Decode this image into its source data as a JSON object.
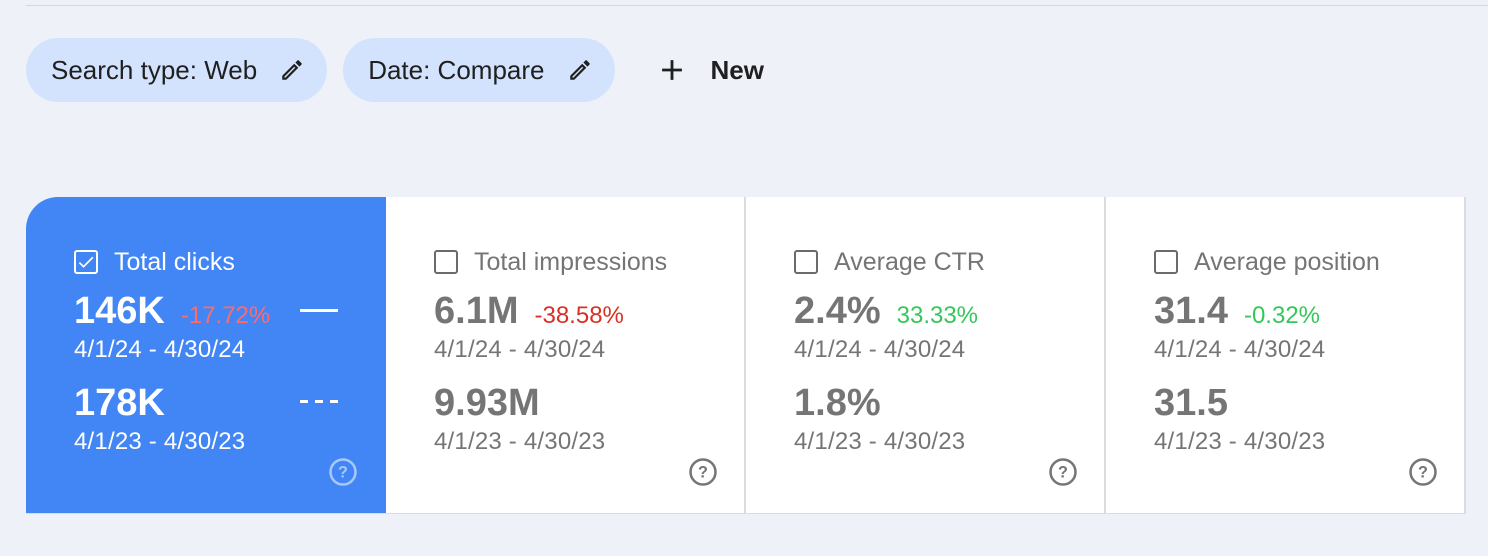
{
  "filters": [
    {
      "label": "Search type: Web",
      "icon": "pencil-icon"
    },
    {
      "label": "Date: Compare",
      "icon": "pencil-icon"
    }
  ],
  "new_button": {
    "label": "New",
    "icon": "plus-icon"
  },
  "colors": {
    "accent": "#4285f4",
    "chip_bg": "#d3e3fd",
    "negative": "#d93025",
    "positive": "#34c759"
  },
  "metrics": [
    {
      "title": "Total clicks",
      "checked": true,
      "current_value": "146K",
      "delta": "-17.72%",
      "delta_trend": "negative",
      "current_range": "4/1/24 - 4/30/24",
      "previous_value": "178K",
      "previous_range": "4/1/23 - 4/30/23"
    },
    {
      "title": "Total impressions",
      "checked": false,
      "current_value": "6.1M",
      "delta": "-38.58%",
      "delta_trend": "negative",
      "current_range": "4/1/24 - 4/30/24",
      "previous_value": "9.93M",
      "previous_range": "4/1/23 - 4/30/23"
    },
    {
      "title": "Average CTR",
      "checked": false,
      "current_value": "2.4%",
      "delta": "33.33%",
      "delta_trend": "positive",
      "current_range": "4/1/24 - 4/30/24",
      "previous_value": "1.8%",
      "previous_range": "4/1/23 - 4/30/23"
    },
    {
      "title": "Average position",
      "checked": false,
      "current_value": "31.4",
      "delta": "-0.32%",
      "delta_trend": "positive",
      "current_range": "4/1/24 - 4/30/24",
      "previous_value": "31.5",
      "previous_range": "4/1/23 - 4/30/23"
    }
  ]
}
